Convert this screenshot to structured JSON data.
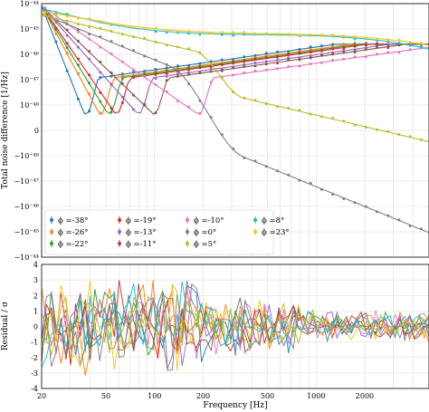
{
  "chart_data": [
    {
      "type": "line",
      "panel": "top",
      "xlabel": "",
      "ylabel": "Total noise difference [1/Hz]",
      "x_scale": "log",
      "xlim": [
        20,
        5000
      ],
      "y_scale": "symlog",
      "y_ticks": [
        "−10⁻⁴⁴",
        "−10⁻⁴⁵",
        "−10⁻⁴⁶",
        "−10⁻⁴⁷",
        "−10⁻⁴⁸",
        "0",
        "10⁻⁴⁸",
        "10⁻⁴⁷",
        "10⁻⁴⁶",
        "10⁻⁴⁵",
        "10⁻⁴⁴"
      ],
      "grid": true,
      "legend_position": "lower-left",
      "series_style": "points with error bars and fitted lines",
      "series": [
        {
          "name": "ϕ =-38°",
          "color": "#1f77b4",
          "dip_freq": 37
        },
        {
          "name": "ϕ =-26°",
          "color": "#ff7f0e",
          "dip_freq": 46
        },
        {
          "name": "ϕ =-22°",
          "color": "#2ca02c",
          "dip_freq": 52
        },
        {
          "name": "ϕ =-19°",
          "color": "#d62728",
          "dip_freq": 58
        },
        {
          "name": "ϕ =-13°",
          "color": "#9467bd",
          "dip_freq": 80
        },
        {
          "name": "ϕ =-11°",
          "color": "#8c564b",
          "dip_freq": 100
        },
        {
          "name": "ϕ =-10°",
          "color": "#e377c2",
          "dip_freq": 190
        },
        {
          "name": "ϕ =0°",
          "color": "#7f7f7f",
          "dip_freq": null
        },
        {
          "name": "ϕ =5°",
          "color": "#bcbd22",
          "dip_freq": null
        },
        {
          "name": "ϕ =8°",
          "color": "#17becf",
          "dip_freq": null
        },
        {
          "name": "ϕ =23°",
          "color": "#f5c518",
          "dip_freq": null
        }
      ]
    },
    {
      "type": "line",
      "panel": "bottom",
      "xlabel": "Frequency [Hz]",
      "ylabel": "Residual / σ",
      "x_scale": "log",
      "xlim": [
        20,
        5000
      ],
      "x_ticks": [
        "20",
        "50",
        "100",
        "200",
        "500",
        "1000",
        "2000"
      ],
      "ylim": [
        -4,
        4
      ],
      "y_ticks": [
        "-4",
        "-3",
        "-2",
        "-1",
        "0",
        "1",
        "2",
        "3",
        "4"
      ],
      "grid": true
    }
  ]
}
